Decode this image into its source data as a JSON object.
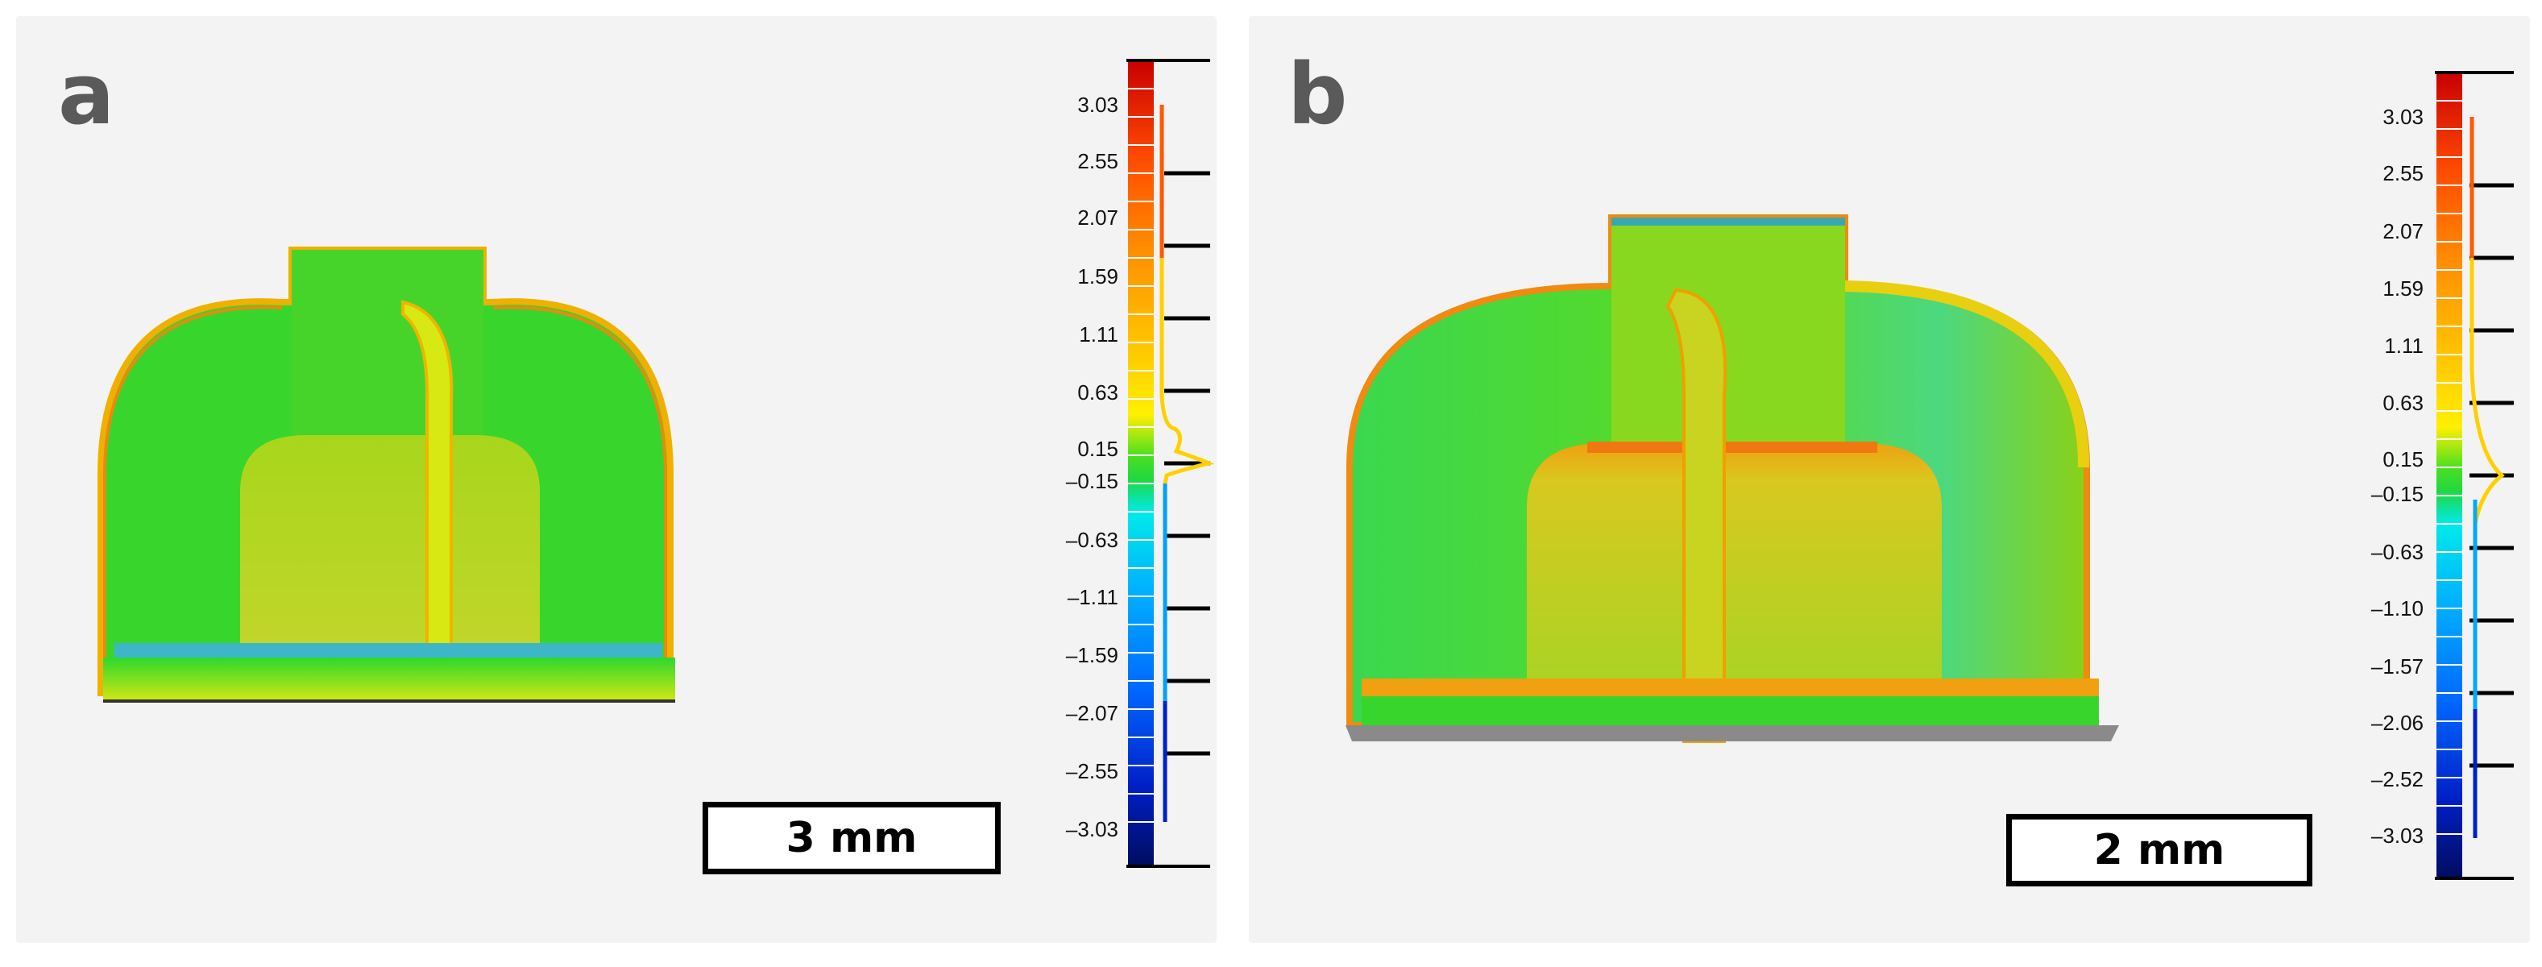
{
  "panels": [
    {
      "letter": "a",
      "scale_label": "3 mm",
      "colorbar_ticks": [
        "3.03",
        "2.55",
        "2.07",
        "1.59",
        "1.11",
        "0.63",
        "0.15",
        "–0.15",
        "–0.63",
        "–1.11",
        "–1.59",
        "–2.07",
        "–2.55",
        "–3.03"
      ]
    },
    {
      "letter": "b",
      "scale_label": "2 mm",
      "colorbar_ticks": [
        "3.03",
        "2.55",
        "2.07",
        "1.59",
        "1.11",
        "0.63",
        "0.15",
        "–0.15",
        "–0.63",
        "–1.10",
        "–1.57",
        "–2.06",
        "–2.52",
        "–3.03"
      ]
    }
  ],
  "colors": {
    "deviation_scale": [
      "#c80000",
      "#ff3a00",
      "#ff8a00",
      "#ffc400",
      "#ffee00",
      "#a6f000",
      "#2ed82e",
      "#00e6e6",
      "#00b8ff",
      "#0070ff",
      "#0030d0",
      "#001080"
    ],
    "model_green": "#38d62c",
    "edge_orange": "#f08010"
  }
}
